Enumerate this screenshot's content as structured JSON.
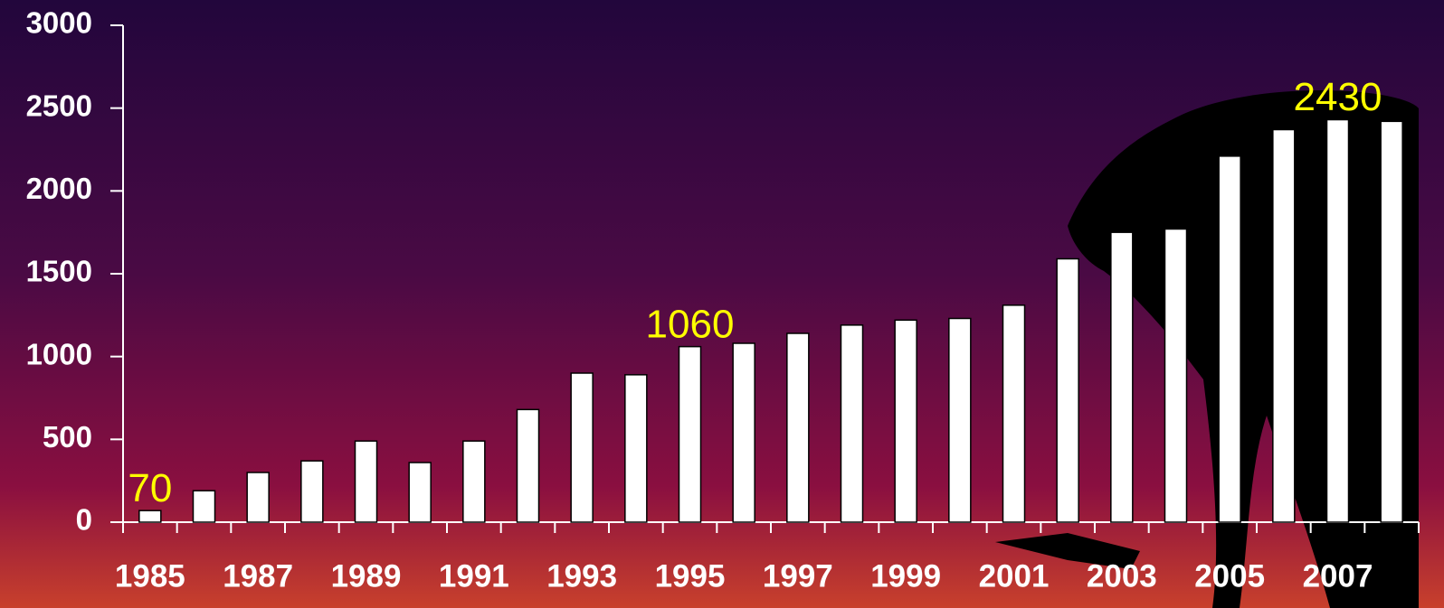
{
  "chart_data": {
    "type": "bar",
    "categories": [
      "1985",
      null,
      "1987",
      null,
      "1989",
      null,
      "1991",
      null,
      "1993",
      null,
      "1995",
      null,
      "1997",
      null,
      "1999",
      null,
      "2001",
      null,
      "2003",
      null,
      "2005",
      null,
      "2007",
      null
    ],
    "values": [
      70,
      190,
      300,
      370,
      490,
      360,
      490,
      680,
      900,
      890,
      1060,
      1080,
      1140,
      1190,
      1220,
      1230,
      1310,
      1590,
      1750,
      1770,
      2210,
      2370,
      2430,
      2420
    ],
    "value_labels": [
      "70",
      null,
      null,
      null,
      null,
      null,
      null,
      null,
      null,
      null,
      "1060",
      null,
      null,
      null,
      null,
      null,
      null,
      null,
      null,
      null,
      null,
      null,
      "2430",
      null
    ],
    "color": "#ffffff",
    "ylim": [
      0,
      3000
    ],
    "yticks": [
      0,
      500,
      1000,
      1500,
      2000,
      2500,
      3000
    ],
    "grid": false
  }
}
